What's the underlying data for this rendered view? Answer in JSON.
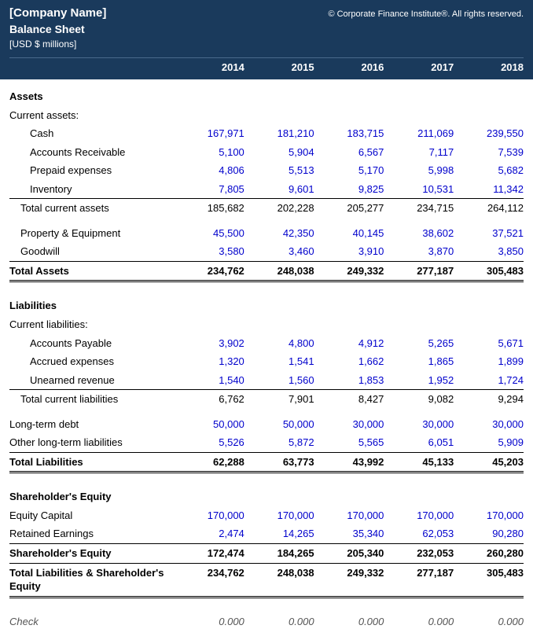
{
  "header": {
    "company": "[Company Name]",
    "copyright": "© Corporate Finance Institute®. All rights reserved.",
    "title": "Balance Sheet",
    "units": "[USD $ millions]"
  },
  "years": [
    "2014",
    "2015",
    "2016",
    "2017",
    "2018"
  ],
  "sections": {
    "assets": {
      "label": "Assets",
      "current_label": "Current assets:",
      "lines": {
        "cash": {
          "label": "Cash",
          "vals": [
            "167,971",
            "181,210",
            "183,715",
            "211,069",
            "239,550"
          ]
        },
        "ar": {
          "label": "Accounts Receivable",
          "vals": [
            "5,100",
            "5,904",
            "6,567",
            "7,117",
            "7,539"
          ]
        },
        "prepaid": {
          "label": "Prepaid expenses",
          "vals": [
            "4,806",
            "5,513",
            "5,170",
            "5,998",
            "5,682"
          ]
        },
        "inv": {
          "label": "Inventory",
          "vals": [
            "7,805",
            "9,601",
            "9,825",
            "10,531",
            "11,342"
          ]
        }
      },
      "current_total": {
        "label": "Total current assets",
        "vals": [
          "185,682",
          "202,228",
          "205,277",
          "234,715",
          "264,112"
        ]
      },
      "ppe": {
        "label": "Property & Equipment",
        "vals": [
          "45,500",
          "42,350",
          "40,145",
          "38,602",
          "37,521"
        ]
      },
      "goodwill": {
        "label": "Goodwill",
        "vals": [
          "3,580",
          "3,460",
          "3,910",
          "3,870",
          "3,850"
        ]
      },
      "total": {
        "label": "Total Assets",
        "vals": [
          "234,762",
          "248,038",
          "249,332",
          "277,187",
          "305,483"
        ]
      }
    },
    "liabilities": {
      "label": "Liabilities",
      "current_label": "Current liabilities:",
      "lines": {
        "ap": {
          "label": "Accounts Payable",
          "vals": [
            "3,902",
            "4,800",
            "4,912",
            "5,265",
            "5,671"
          ]
        },
        "accrued": {
          "label": "Accrued expenses",
          "vals": [
            "1,320",
            "1,541",
            "1,662",
            "1,865",
            "1,899"
          ]
        },
        "unearned": {
          "label": "Unearned revenue",
          "vals": [
            "1,540",
            "1,560",
            "1,853",
            "1,952",
            "1,724"
          ]
        }
      },
      "current_total": {
        "label": "Total current liabilities",
        "vals": [
          "6,762",
          "7,901",
          "8,427",
          "9,082",
          "9,294"
        ]
      },
      "ltd": {
        "label": "Long-term debt",
        "vals": [
          "50,000",
          "50,000",
          "30,000",
          "30,000",
          "30,000"
        ]
      },
      "other_lt": {
        "label": "Other long-term liabilities",
        "vals": [
          "5,526",
          "5,872",
          "5,565",
          "6,051",
          "5,909"
        ]
      },
      "total": {
        "label": "Total Liabilities",
        "vals": [
          "62,288",
          "63,773",
          "43,992",
          "45,133",
          "45,203"
        ]
      }
    },
    "equity": {
      "label": "Shareholder's Equity",
      "ec": {
        "label": "Equity Capital",
        "vals": [
          "170,000",
          "170,000",
          "170,000",
          "170,000",
          "170,000"
        ]
      },
      "re": {
        "label": "Retained Earnings",
        "vals": [
          "2,474",
          "14,265",
          "35,340",
          "62,053",
          "90,280"
        ]
      },
      "total": {
        "label": "Shareholder's Equity",
        "vals": [
          "172,474",
          "184,265",
          "205,340",
          "232,053",
          "260,280"
        ]
      }
    },
    "tle": {
      "label": "Total Liabilities & Shareholder's Equity",
      "vals": [
        "234,762",
        "248,038",
        "249,332",
        "277,187",
        "305,483"
      ]
    },
    "check": {
      "label": "Check",
      "vals": [
        "0.000",
        "0.000",
        "0.000",
        "0.000",
        "0.000"
      ]
    }
  },
  "colors": {
    "header_bg": "#1a3a5c",
    "input_blue": "#0000cc"
  }
}
